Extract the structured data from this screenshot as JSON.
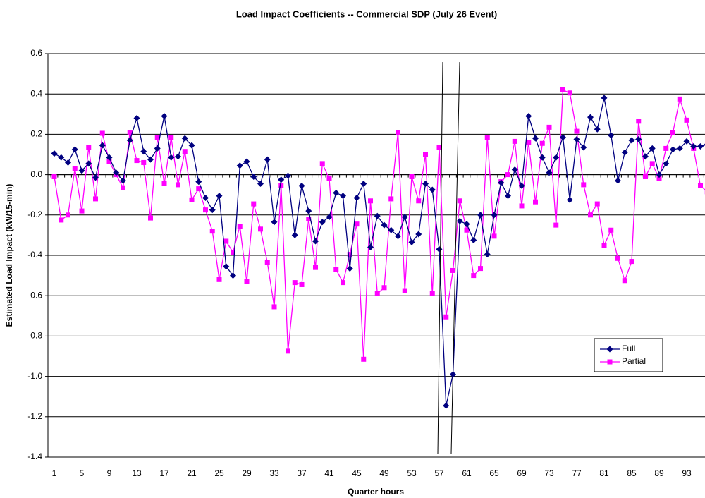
{
  "chart_data": {
    "type": "line",
    "title": "Load Impact Coefficients -- Commercial SDP  (July 26 Event)",
    "x_label": "Quarter hours",
    "y_label": "Estimated Load Impact (kW/15-min)",
    "categories": [
      "1",
      null,
      null,
      null,
      "5",
      null,
      null,
      null,
      "9",
      null,
      null,
      null,
      "13",
      null,
      null,
      null,
      "17",
      null,
      null,
      null,
      "21",
      null,
      null,
      null,
      "25",
      null,
      null,
      null,
      "29",
      null,
      null,
      null,
      "33",
      null,
      null,
      null,
      "37",
      null,
      null,
      null,
      "41",
      null,
      null,
      null,
      "45",
      null,
      null,
      null,
      "49",
      null,
      null,
      null,
      "53",
      null,
      null,
      null,
      "57",
      null,
      null,
      null,
      "61",
      null,
      null,
      null,
      "65",
      null,
      null,
      null,
      "69",
      null,
      null,
      null,
      "73",
      null,
      null,
      null,
      "77",
      null,
      null,
      null,
      "81",
      null,
      null,
      null,
      "85",
      null,
      null,
      null,
      "89",
      null,
      null,
      null,
      "93",
      null,
      null,
      null
    ],
    "series": [
      {
        "name": "Full",
        "color": "#000080",
        "marker": "diamond",
        "values": [
          0.105,
          0.085,
          0.06,
          0.125,
          0.02,
          0.055,
          -0.015,
          0.145,
          0.085,
          0.01,
          -0.03,
          0.17,
          0.28,
          0.115,
          0.075,
          0.13,
          0.29,
          0.085,
          0.09,
          0.18,
          0.145,
          -0.035,
          -0.115,
          -0.175,
          -0.105,
          -0.455,
          -0.5,
          0.045,
          0.065,
          -0.01,
          -0.045,
          0.075,
          -0.235,
          -0.025,
          -0.005,
          -0.3,
          -0.055,
          -0.18,
          -0.33,
          -0.235,
          -0.21,
          -0.09,
          -0.105,
          -0.465,
          -0.115,
          -0.045,
          -0.36,
          -0.205,
          -0.25,
          -0.275,
          -0.305,
          -0.21,
          -0.335,
          -0.295,
          -0.045,
          -0.075,
          -0.37,
          -1.145,
          -0.99,
          -0.23,
          -0.245,
          -0.325,
          -0.2,
          -0.395,
          -0.2,
          -0.04,
          -0.105,
          0.025,
          -0.055,
          0.29,
          0.18,
          0.085,
          0.01,
          0.085,
          0.185,
          -0.125,
          0.175,
          0.135,
          0.285,
          0.225,
          0.38,
          0.195,
          -0.03,
          0.11,
          0.17,
          0.175,
          0.09,
          0.13,
          0.0,
          0.055,
          0.125,
          0.13,
          0.165,
          0.14,
          0.14,
          0.15
        ]
      },
      {
        "name": "Partial",
        "color": "#ff00ff",
        "marker": "square",
        "values": [
          -0.01,
          -0.225,
          -0.2,
          0.03,
          -0.18,
          0.135,
          -0.12,
          0.205,
          0.065,
          0.0,
          -0.065,
          0.21,
          0.07,
          0.06,
          -0.215,
          0.185,
          -0.045,
          0.185,
          -0.05,
          0.115,
          -0.125,
          -0.07,
          -0.175,
          -0.28,
          -0.52,
          -0.33,
          -0.385,
          -0.255,
          -0.53,
          -0.145,
          -0.27,
          -0.435,
          -0.655,
          -0.055,
          -0.875,
          -0.535,
          -0.545,
          -0.22,
          -0.46,
          0.055,
          -0.02,
          -0.47,
          -0.535,
          -0.395,
          -0.245,
          -0.915,
          -0.13,
          -0.59,
          -0.56,
          -0.12,
          0.21,
          -0.575,
          -0.01,
          -0.13,
          0.1,
          -0.59,
          0.135,
          -0.705,
          -0.475,
          -0.13,
          -0.275,
          -0.5,
          -0.465,
          0.185,
          -0.305,
          -0.035,
          0.0,
          0.165,
          -0.155,
          0.16,
          -0.135,
          0.155,
          0.235,
          -0.25,
          0.42,
          0.405,
          0.215,
          -0.05,
          -0.2,
          -0.145,
          -0.35,
          -0.275,
          -0.415,
          -0.525,
          -0.43,
          0.265,
          -0.01,
          0.055,
          -0.02,
          0.13,
          0.21,
          0.375,
          0.27,
          0.13,
          -0.055,
          -0.085
        ]
      }
    ],
    "ylim": [
      -1.4,
      0.6
    ],
    "yticks": [
      {
        "value": -1.4,
        "label": "-1.4"
      },
      -1.2,
      {
        "value": -1,
        "label": "-1.0"
      },
      -0.8,
      -0.6,
      -0.4,
      -0.2,
      {
        "value": 0,
        "label": "0.0"
      },
      0.2,
      0.4,
      0.6
    ],
    "grid": true,
    "legend": "right"
  }
}
